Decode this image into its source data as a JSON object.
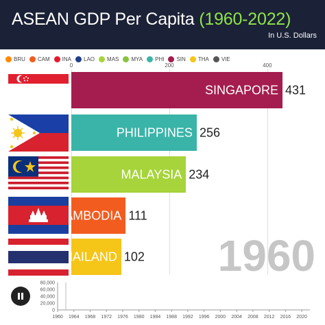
{
  "header": {
    "title_main": "ASEAN GDP Per Capita ",
    "title_years": "(1960-2022)",
    "subtitle": "In U.S. Dollars"
  },
  "legend": [
    {
      "code": "BRU",
      "color": "#ff8a00"
    },
    {
      "code": "CAM",
      "color": "#f25c1f"
    },
    {
      "code": "INA",
      "color": "#e6192b"
    },
    {
      "code": "LAO",
      "color": "#1f3e8a"
    },
    {
      "code": "MAS",
      "color": "#a6d43a"
    },
    {
      "code": "MYA",
      "color": "#86c440"
    },
    {
      "code": "PHI",
      "color": "#3ab4a8"
    },
    {
      "code": "SIN",
      "color": "#a41d4e"
    },
    {
      "code": "THA",
      "color": "#f5c518"
    },
    {
      "code": "VIE",
      "color": "#555555"
    }
  ],
  "chart_data": {
    "type": "bar",
    "orientation": "horizontal",
    "title": "ASEAN GDP Per Capita (1960-2022)",
    "subtitle": "In U.S. Dollars",
    "year": "1960",
    "categories": [
      "SINGAPORE",
      "PHILIPPINES",
      "MALAYSIA",
      "CAMBODIA",
      "THAILAND"
    ],
    "values": [
      431,
      256,
      234,
      111,
      102
    ],
    "visible_labels": [
      "SINGAPORE",
      "PHILIPPINES",
      "MALAYSIA",
      "AMBODIA",
      "HAILAND"
    ],
    "colors": [
      "#a41d4e",
      "#3ab4a8",
      "#a6d43a",
      "#f25c1f",
      "#f5c518"
    ],
    "xticks": [
      0,
      200,
      400
    ],
    "xlim": [
      0,
      431
    ],
    "timeline": {
      "yticks": [
        "80,000",
        "60,000",
        "40,000",
        "20,000",
        "0"
      ],
      "ylim": [
        0,
        80000
      ],
      "xticks": [
        "1960",
        "1964",
        "1968",
        "1972",
        "1976",
        "1980",
        "1984",
        "1988",
        "1992",
        "1996",
        "2000",
        "2004",
        "2008",
        "2012",
        "2016",
        "2020"
      ],
      "xlim": [
        1960,
        2022
      ]
    }
  }
}
